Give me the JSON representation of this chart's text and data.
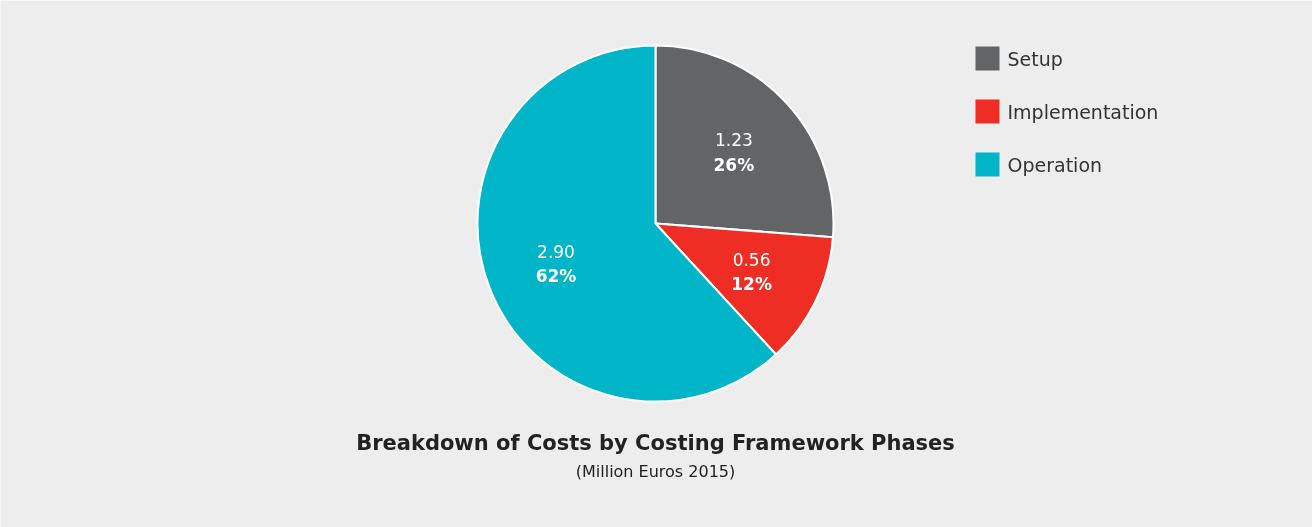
{
  "chart_data": {
    "type": "pie",
    "title": "Breakdown of Costs by Costing Framework Phases",
    "subtitle": "(Million Euros 2015)",
    "categories": [
      "Setup",
      "Implementation",
      "Operation"
    ],
    "values": [
      1.23,
      0.56,
      2.9
    ],
    "colors": [
      "#636466",
      "#ee2e24",
      "#00b5c8"
    ],
    "value_labels": [
      "1.23\n26%",
      "0.56\n12%",
      "2.90\n62%"
    ],
    "legend": "top right"
  }
}
